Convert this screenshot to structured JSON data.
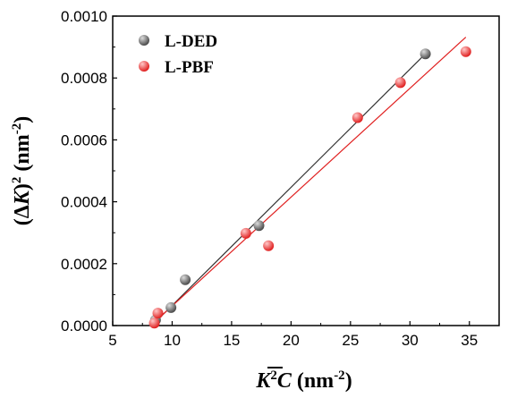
{
  "chart_data": {
    "type": "scatter",
    "xlim": [
      5,
      37.5
    ],
    "ylim": [
      0,
      0.001
    ],
    "x_ticks": [
      5,
      10,
      15,
      20,
      25,
      30,
      35
    ],
    "x_tick_labels": [
      "5",
      "10",
      "15",
      "20",
      "25",
      "30",
      "35"
    ],
    "y_ticks": [
      0,
      0.0002,
      0.0004,
      0.0006,
      0.0008,
      0.001
    ],
    "y_tick_labels": [
      "0.0000",
      "0.0002",
      "0.0004",
      "0.0006",
      "0.0008",
      "0.0010"
    ],
    "xlabel": {
      "main": "K",
      "sup": "2",
      "over": "C",
      "unit": " (nm",
      "unit_sup": "-2",
      "unit_end": ")"
    },
    "ylabel": {
      "open": "(Δ",
      "main": "K",
      "close": ")",
      "sup": "2",
      "unit": " (nm",
      "unit_sup": "-2",
      "unit_end": ")"
    },
    "grid": false,
    "legend_position": "top-left",
    "series": [
      {
        "name": "L-DED",
        "color": "#4a4a4a",
        "highlight": "#dcdcdc",
        "points": [
          [
            8.6,
            1.8e-05
          ],
          [
            9.9,
            5.8e-05
          ],
          [
            11.1,
            0.000148
          ],
          [
            17.3,
            0.000323
          ],
          [
            31.3,
            0.000878
          ]
        ],
        "fit": [
          [
            8.3,
            0.0
          ],
          [
            31.3,
            0.000878
          ]
        ],
        "fit_color": "#333333"
      },
      {
        "name": "L-PBF",
        "color": "#e02020",
        "highlight": "#ffc8c8",
        "points": [
          [
            8.5,
            8e-06
          ],
          [
            8.8,
            4e-05
          ],
          [
            16.2,
            0.000298
          ],
          [
            18.1,
            0.000258
          ],
          [
            25.6,
            0.000672
          ],
          [
            29.2,
            0.000785
          ],
          [
            34.7,
            0.000885
          ]
        ],
        "fit": [
          [
            8.2,
            0.0
          ],
          [
            34.7,
            0.000932
          ]
        ],
        "fit_color": "#e02020"
      }
    ]
  }
}
